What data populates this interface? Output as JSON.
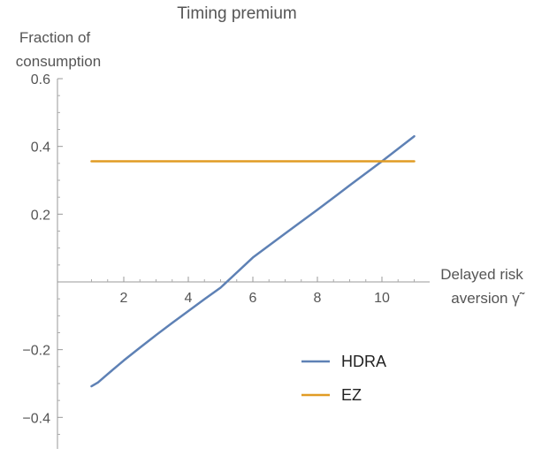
{
  "chart_data": {
    "type": "line",
    "title": "Timing premium",
    "ylabel_lines": [
      "Fraction of",
      "consumption"
    ],
    "xlabel_lines": [
      "Delayed risk",
      "aversion γ̃"
    ],
    "xlim": [
      0.05,
      11.3
    ],
    "ylim": [
      -0.5,
      0.6
    ],
    "x_ticks": [
      2,
      4,
      6,
      8,
      10
    ],
    "x_tick_labels": [
      "2",
      "4",
      "6",
      "8",
      "10"
    ],
    "y_ticks": [
      -0.4,
      -0.2,
      0.2,
      0.4,
      0.6
    ],
    "y_tick_labels": [
      "−0.4",
      "−0.2",
      "0.2",
      "0.4",
      "0.6"
    ],
    "grid": false,
    "legend_position": "lower-right",
    "series": [
      {
        "name": "HDRA",
        "color": "#5E81B5",
        "x": [
          1,
          1.2,
          1.5,
          2,
          2.5,
          3,
          3.5,
          4,
          4.5,
          5,
          6,
          7,
          8,
          9,
          10,
          11
        ],
        "y": [
          -0.308,
          -0.297,
          -0.272,
          -0.232,
          -0.194,
          -0.157,
          -0.121,
          -0.086,
          -0.051,
          -0.017,
          0.072,
          0.143,
          0.213,
          0.285,
          0.356,
          0.43
        ]
      },
      {
        "name": "EZ",
        "color": "#E19C24",
        "x": [
          1,
          11
        ],
        "y": [
          0.356,
          0.356
        ]
      }
    ]
  }
}
